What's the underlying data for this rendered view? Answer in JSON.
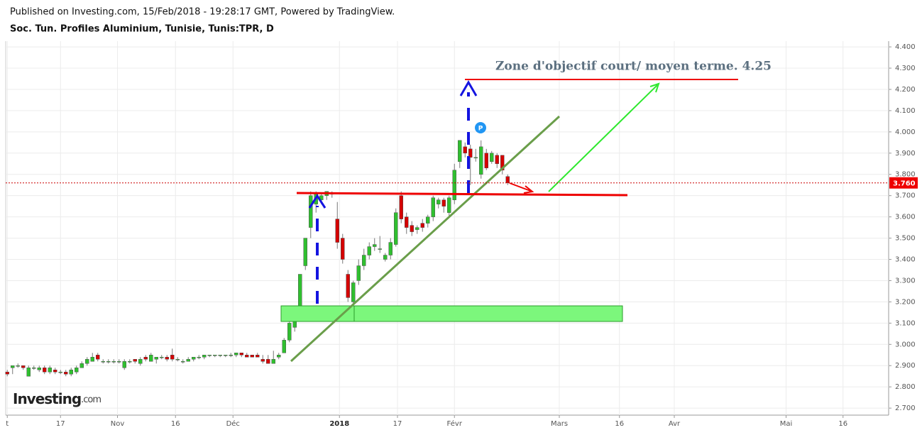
{
  "header": {
    "published": "Published on Investing.com, 15/Feb/2018 - 19:28:17 GMT, Powered by TradingView.",
    "symbol": "Soc. Tun. Profiles Aluminium, Tunisie, Tunis:TPR, D"
  },
  "logo": {
    "brand": "Investing",
    "suffix": ".com"
  },
  "chart_data": {
    "type": "candlestick",
    "annotation": "Zone d'objectif court/ moyen terme. 4.25",
    "badge": "P",
    "up_color": "#2fbf2f",
    "down_color": "#d40000",
    "last_price": {
      "value": 3.76,
      "label": "3.760"
    },
    "xlim": [
      -0.3,
      165.3
    ],
    "ylim": [
      2.667,
      4.427
    ],
    "grid": true,
    "xticks": [
      {
        "value": 0,
        "label": "t"
      },
      {
        "value": 10,
        "label": "17"
      },
      {
        "value": 20.7,
        "label": "Nov"
      },
      {
        "value": 31.6,
        "label": "16"
      },
      {
        "value": 42.4,
        "label": "Déc"
      },
      {
        "value": 62.4,
        "label": "2018"
      },
      {
        "value": 73.3,
        "label": "17"
      },
      {
        "value": 84,
        "label": "Févr"
      },
      {
        "value": 103.7,
        "label": "Mars"
      },
      {
        "value": 115,
        "label": "16"
      },
      {
        "value": 125.3,
        "label": "Avr"
      },
      {
        "value": 146.3,
        "label": "Mai"
      },
      {
        "value": 157,
        "label": "16"
      }
    ],
    "yticks": [
      {
        "value": 2.7,
        "label": "2.700"
      },
      {
        "value": 2.8,
        "label": "2.800"
      },
      {
        "value": 2.9,
        "label": "2.900"
      },
      {
        "value": 3,
        "label": "3.000"
      },
      {
        "value": 3.1,
        "label": "3.100"
      },
      {
        "value": 3.2,
        "label": "3.200"
      },
      {
        "value": 3.3,
        "label": "3.300"
      },
      {
        "value": 3.4,
        "label": "3.400"
      },
      {
        "value": 3.5,
        "label": "3.500"
      },
      {
        "value": 3.6,
        "label": "3.600"
      },
      {
        "value": 3.7,
        "label": "3.700"
      },
      {
        "value": 3.8,
        "label": "3.800"
      },
      {
        "value": 3.9,
        "label": "3.900"
      },
      {
        "value": 4,
        "label": "4.000"
      },
      {
        "value": 4.1,
        "label": "4.100"
      },
      {
        "value": 4.2,
        "label": "4.200"
      },
      {
        "value": 4.3,
        "label": "4.300"
      },
      {
        "value": 4.4,
        "label": "4.400"
      }
    ],
    "x": [
      0,
      1,
      2,
      3,
      4,
      5,
      6,
      7,
      8,
      9,
      10,
      11,
      12,
      13,
      14,
      15,
      16,
      17,
      18,
      19,
      20,
      21,
      22,
      23,
      24,
      25,
      26,
      27,
      28,
      29,
      30,
      31,
      32,
      33,
      34,
      35,
      36,
      37,
      38,
      39,
      40,
      41,
      42,
      43,
      44,
      45,
      46,
      47,
      48,
      49,
      50,
      51,
      52,
      53,
      54,
      55,
      56,
      57,
      58,
      59,
      60,
      61,
      62,
      63,
      64,
      65,
      66,
      67,
      68,
      69,
      70,
      71,
      72,
      73,
      74,
      75,
      76,
      77,
      78,
      79,
      80,
      81,
      82,
      83,
      84,
      85,
      86,
      87,
      88,
      89,
      90,
      91,
      92,
      93,
      94
    ],
    "open": [
      2.87,
      2.89,
      2.9,
      2.9,
      2.85,
      2.89,
      2.88,
      2.89,
      2.87,
      2.88,
      2.87,
      2.87,
      2.86,
      2.87,
      2.89,
      2.91,
      2.92,
      2.95,
      2.92,
      2.92,
      2.92,
      2.92,
      2.89,
      2.92,
      2.93,
      2.91,
      2.94,
      2.92,
      2.93,
      2.94,
      2.94,
      2.95,
      2.93,
      2.92,
      2.92,
      2.93,
      2.94,
      2.94,
      2.95,
      2.95,
      2.95,
      2.95,
      2.95,
      2.95,
      2.96,
      2.95,
      2.95,
      2.95,
      2.93,
      2.93,
      2.91,
      2.94,
      2.96,
      3.02,
      3.08,
      3.17,
      3.37,
      3.55,
      3.66,
      3.68,
      3.7,
      3.71,
      3.59,
      3.5,
      3.33,
      3.2,
      3.3,
      3.37,
      3.42,
      3.46,
      3.45,
      3.4,
      3.42,
      3.47,
      3.7,
      3.6,
      3.56,
      3.54,
      3.57,
      3.57,
      3.6,
      3.66,
      3.68,
      3.62,
      3.68,
      3.86,
      3.93,
      3.92,
      3.88,
      3.8,
      3.9,
      3.86,
      3.89,
      3.89,
      3.79
    ],
    "high": [
      2.88,
      2.9,
      2.91,
      2.9,
      2.9,
      2.9,
      2.9,
      2.9,
      2.9,
      2.89,
      2.88,
      2.88,
      2.89,
      2.9,
      2.92,
      2.94,
      2.96,
      2.96,
      2.93,
      2.93,
      2.93,
      2.93,
      2.93,
      2.93,
      2.93,
      2.94,
      2.95,
      2.96,
      2.94,
      2.95,
      2.95,
      2.98,
      2.94,
      2.93,
      2.94,
      2.94,
      2.95,
      2.95,
      2.95,
      2.95,
      2.95,
      2.95,
      2.96,
      2.96,
      2.96,
      2.96,
      2.95,
      2.96,
      2.95,
      2.95,
      2.97,
      2.96,
      3.03,
      3.11,
      3.17,
      3.33,
      3.5,
      3.72,
      3.72,
      3.71,
      3.72,
      3.72,
      3.67,
      3.52,
      3.35,
      3.3,
      3.4,
      3.45,
      3.48,
      3.5,
      3.51,
      3.43,
      3.5,
      3.64,
      3.72,
      3.62,
      3.58,
      3.56,
      3.59,
      3.61,
      3.7,
      3.69,
      3.69,
      3.7,
      3.85,
      3.96,
      3.95,
      3.94,
      3.92,
      3.96,
      3.92,
      3.91,
      3.9,
      3.89,
      3.8
    ],
    "low": [
      2.85,
      2.86,
      2.89,
      2.88,
      2.85,
      2.88,
      2.87,
      2.86,
      2.86,
      2.86,
      2.86,
      2.85,
      2.85,
      2.86,
      2.89,
      2.9,
      2.92,
      2.92,
      2.91,
      2.91,
      2.91,
      2.91,
      2.88,
      2.91,
      2.91,
      2.9,
      2.92,
      2.92,
      2.91,
      2.93,
      2.92,
      2.92,
      2.92,
      2.91,
      2.92,
      2.92,
      2.93,
      2.93,
      2.94,
      2.94,
      2.94,
      2.94,
      2.94,
      2.94,
      2.94,
      2.94,
      2.94,
      2.94,
      2.91,
      2.91,
      2.91,
      2.93,
      2.96,
      3.01,
      3.06,
      3.15,
      3.35,
      3.5,
      3.62,
      3.66,
      3.68,
      3.69,
      3.45,
      3.38,
      3.2,
      3.18,
      3.28,
      3.35,
      3.4,
      3.44,
      3.43,
      3.39,
      3.4,
      3.46,
      3.57,
      3.52,
      3.51,
      3.52,
      3.53,
      3.55,
      3.58,
      3.64,
      3.62,
      3.6,
      3.66,
      3.83,
      3.88,
      3.75,
      3.86,
      3.78,
      3.82,
      3.85,
      3.83,
      3.8,
      3.75
    ],
    "close": [
      2.86,
      2.9,
      2.9,
      2.89,
      2.89,
      2.89,
      2.89,
      2.87,
      2.89,
      2.87,
      2.87,
      2.86,
      2.88,
      2.89,
      2.91,
      2.93,
      2.94,
      2.93,
      2.92,
      2.92,
      2.92,
      2.92,
      2.92,
      2.92,
      2.92,
      2.93,
      2.93,
      2.95,
      2.94,
      2.94,
      2.93,
      2.93,
      2.93,
      2.92,
      2.93,
      2.94,
      2.94,
      2.95,
      2.95,
      2.95,
      2.95,
      2.95,
      2.95,
      2.96,
      2.95,
      2.94,
      2.94,
      2.94,
      2.92,
      2.91,
      2.93,
      2.95,
      3.02,
      3.1,
      3.15,
      3.33,
      3.5,
      3.7,
      3.71,
      3.7,
      3.72,
      3.71,
      3.48,
      3.4,
      3.22,
      3.29,
      3.37,
      3.42,
      3.46,
      3.47,
      3.45,
      3.42,
      3.48,
      3.62,
      3.59,
      3.55,
      3.53,
      3.55,
      3.55,
      3.6,
      3.69,
      3.68,
      3.65,
      3.69,
      3.82,
      3.96,
      3.9,
      3.88,
      3.88,
      3.93,
      3.83,
      3.9,
      3.85,
      3.82,
      3.76
    ]
  }
}
